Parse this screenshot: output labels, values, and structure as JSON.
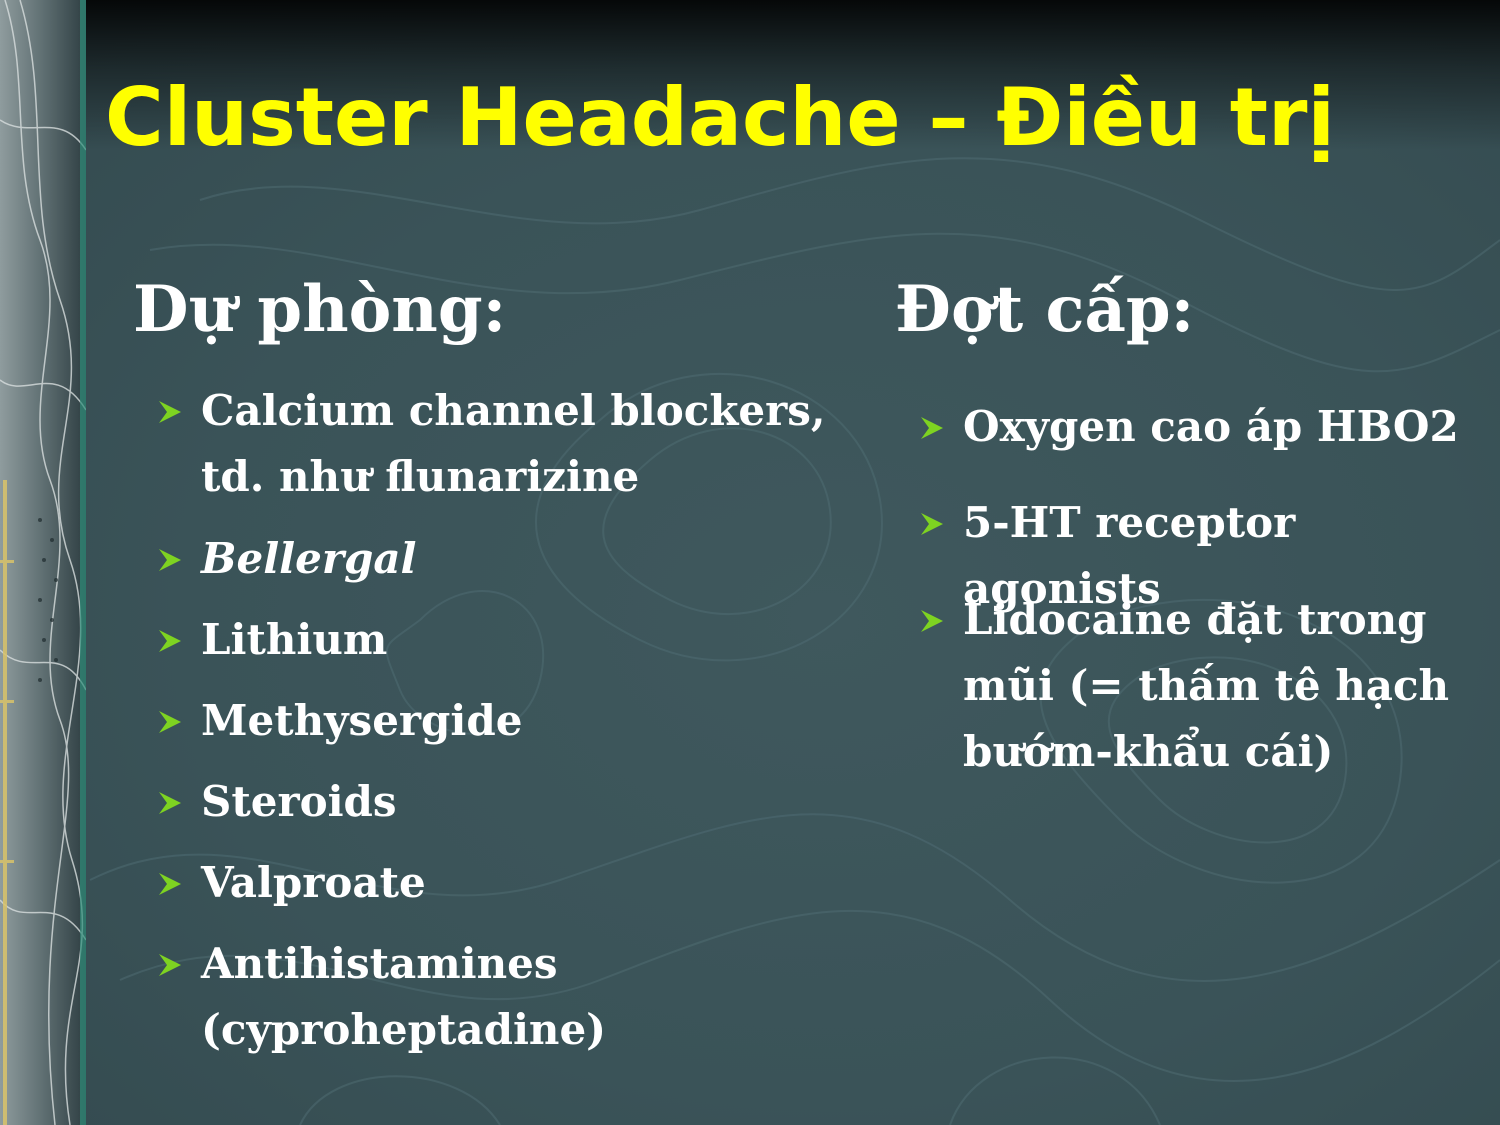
{
  "slide": {
    "title": "Cluster Headache – Điều trị",
    "colors": {
      "title": "#ffff00",
      "text": "#ffffff",
      "bullet": "#7ed321",
      "background": "#3b5459"
    }
  },
  "left_column": {
    "heading": "Dự phòng:",
    "items": [
      {
        "text": "Calcium channel blockers,\ntd. như flunarizine"
      },
      {
        "text": "Bellergal"
      },
      {
        "text": "Lithium"
      },
      {
        "text": "Methysergide"
      },
      {
        "text": "Steroids"
      },
      {
        "text": "Valproate"
      },
      {
        "text": "Antihistamines\n(cyproheptadine)"
      }
    ]
  },
  "right_column": {
    "heading": "Đợt cấp:",
    "items": [
      {
        "text": "Oxygen cao áp HBO2"
      },
      {
        "text": "5-HT receptor agonists"
      },
      {
        "text": "Lidocaine đặt trong\nmũi (= thấm tê hạch\nbướm-khẩu cái)"
      }
    ]
  }
}
